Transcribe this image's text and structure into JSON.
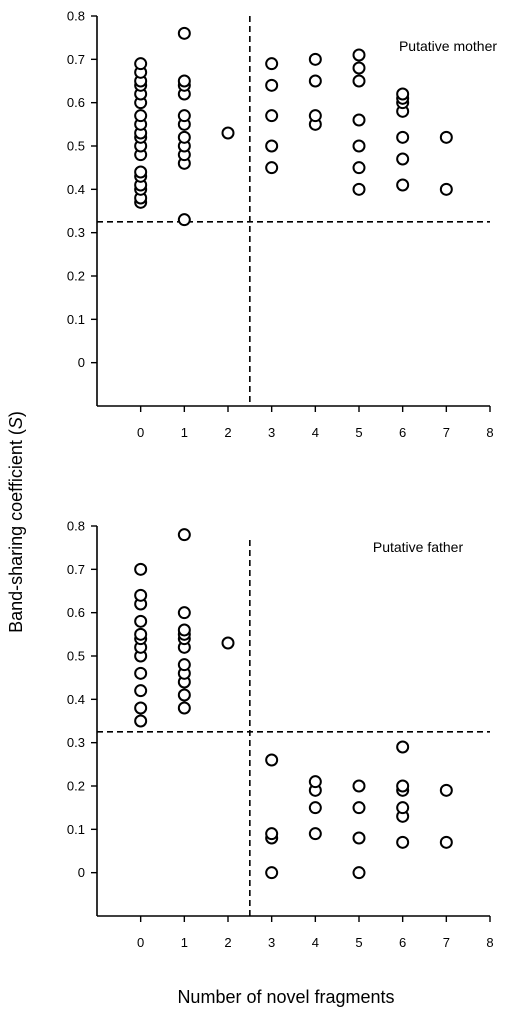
{
  "figure": {
    "ylabel_main": "Band-sharing coefficient (",
    "ylabel_italic": "S",
    "ylabel_close": ")",
    "xlabel": "Number of novel fragments"
  },
  "chart_data": [
    {
      "type": "scatter",
      "label": "Putative mother",
      "xlim": [
        -1,
        8
      ],
      "ylim": [
        -0.1,
        0.8
      ],
      "xticks": [
        "0",
        "1",
        "2",
        "3",
        "4",
        "5",
        "6",
        "7",
        "8"
      ],
      "yticks": [
        "0",
        "0.1",
        "0.2",
        "0.3",
        "0.4",
        "0.5",
        "0.6",
        "0.7",
        "0.8"
      ],
      "threshold_y": 0.325,
      "threshold_x": 2.5,
      "points": [
        [
          0,
          0.37
        ],
        [
          0,
          0.38
        ],
        [
          0,
          0.4
        ],
        [
          0,
          0.41
        ],
        [
          0,
          0.43
        ],
        [
          0,
          0.44
        ],
        [
          0,
          0.48
        ],
        [
          0,
          0.5
        ],
        [
          0,
          0.52
        ],
        [
          0,
          0.53
        ],
        [
          0,
          0.55
        ],
        [
          0,
          0.57
        ],
        [
          0,
          0.6
        ],
        [
          0,
          0.62
        ],
        [
          0,
          0.64
        ],
        [
          0,
          0.65
        ],
        [
          0,
          0.67
        ],
        [
          0,
          0.69
        ],
        [
          1,
          0.33
        ],
        [
          1,
          0.46
        ],
        [
          1,
          0.48
        ],
        [
          1,
          0.5
        ],
        [
          1,
          0.52
        ],
        [
          1,
          0.55
        ],
        [
          1,
          0.57
        ],
        [
          1,
          0.62
        ],
        [
          1,
          0.64
        ],
        [
          1,
          0.65
        ],
        [
          1,
          0.76
        ],
        [
          2,
          0.53
        ],
        [
          3,
          0.45
        ],
        [
          3,
          0.5
        ],
        [
          3,
          0.57
        ],
        [
          3,
          0.64
        ],
        [
          3,
          0.69
        ],
        [
          4,
          0.55
        ],
        [
          4,
          0.57
        ],
        [
          4,
          0.65
        ],
        [
          4,
          0.7
        ],
        [
          5,
          0.4
        ],
        [
          5,
          0.45
        ],
        [
          5,
          0.5
        ],
        [
          5,
          0.56
        ],
        [
          5,
          0.65
        ],
        [
          5,
          0.68
        ],
        [
          5,
          0.71
        ],
        [
          6,
          0.41
        ],
        [
          6,
          0.47
        ],
        [
          6,
          0.52
        ],
        [
          6,
          0.58
        ],
        [
          6,
          0.6
        ],
        [
          6,
          0.61
        ],
        [
          6,
          0.62
        ],
        [
          7,
          0.4
        ],
        [
          7,
          0.52
        ]
      ]
    },
    {
      "type": "scatter",
      "label": "Putative father",
      "xlim": [
        -1,
        8
      ],
      "ylim": [
        -0.1,
        0.8
      ],
      "xticks": [
        "0",
        "1",
        "2",
        "3",
        "4",
        "5",
        "6",
        "7",
        "8"
      ],
      "yticks": [
        "0",
        "0.1",
        "0.2",
        "0.3",
        "0.4",
        "0.5",
        "0.6",
        "0.7",
        "0.8"
      ],
      "threshold_y": 0.325,
      "threshold_x": 2.5,
      "points": [
        [
          0,
          0.35
        ],
        [
          0,
          0.38
        ],
        [
          0,
          0.42
        ],
        [
          0,
          0.46
        ],
        [
          0,
          0.5
        ],
        [
          0,
          0.52
        ],
        [
          0,
          0.54
        ],
        [
          0,
          0.55
        ],
        [
          0,
          0.58
        ],
        [
          0,
          0.62
        ],
        [
          0,
          0.64
        ],
        [
          0,
          0.7
        ],
        [
          1,
          0.38
        ],
        [
          1,
          0.41
        ],
        [
          1,
          0.44
        ],
        [
          1,
          0.46
        ],
        [
          1,
          0.48
        ],
        [
          1,
          0.52
        ],
        [
          1,
          0.54
        ],
        [
          1,
          0.55
        ],
        [
          1,
          0.56
        ],
        [
          1,
          0.6
        ],
        [
          1,
          0.78
        ],
        [
          2,
          0.53
        ],
        [
          3,
          0.0
        ],
        [
          3,
          0.08
        ],
        [
          3,
          0.09
        ],
        [
          3,
          0.26
        ],
        [
          4,
          0.09
        ],
        [
          4,
          0.15
        ],
        [
          4,
          0.19
        ],
        [
          4,
          0.21
        ],
        [
          5,
          0.0
        ],
        [
          5,
          0.08
        ],
        [
          5,
          0.15
        ],
        [
          5,
          0.2
        ],
        [
          6,
          0.07
        ],
        [
          6,
          0.13
        ],
        [
          6,
          0.15
        ],
        [
          6,
          0.19
        ],
        [
          6,
          0.2
        ],
        [
          6,
          0.29
        ],
        [
          7,
          0.07
        ],
        [
          7,
          0.19
        ]
      ]
    }
  ]
}
